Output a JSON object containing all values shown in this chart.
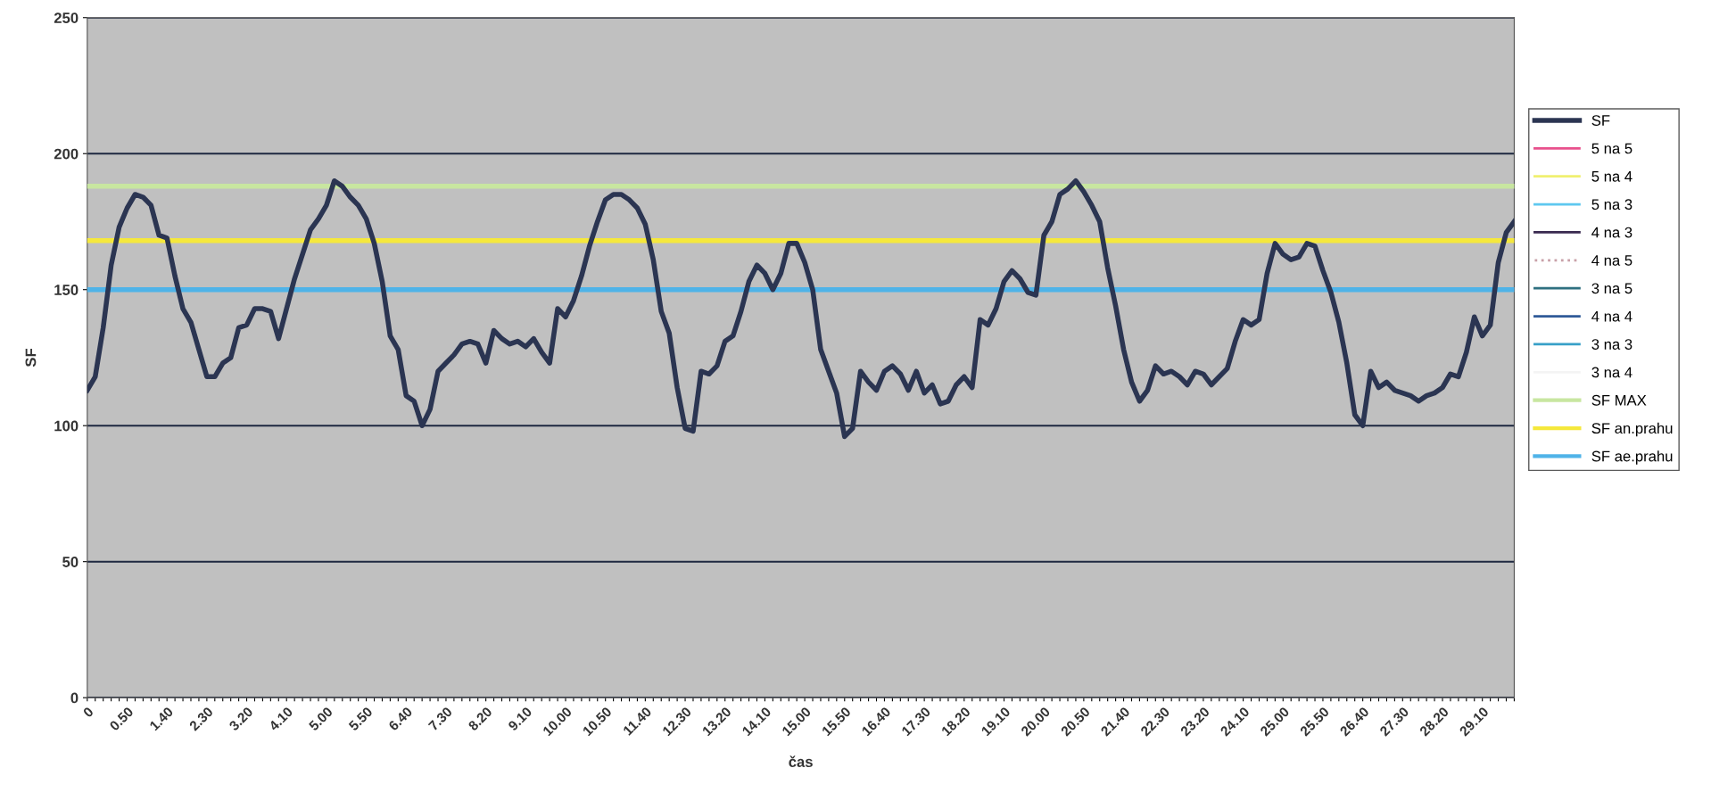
{
  "chart_data": {
    "type": "line",
    "xlabel": "čas",
    "ylabel": "SF",
    "categories": [
      "0",
      null,
      null,
      null,
      null,
      "0.50",
      null,
      null,
      null,
      null,
      "1.40",
      null,
      null,
      null,
      null,
      "2.30",
      null,
      null,
      null,
      null,
      "3.20",
      null,
      null,
      null,
      null,
      "4.10",
      null,
      null,
      null,
      null,
      "5.00",
      null,
      null,
      null,
      null,
      "5.50",
      null,
      null,
      null,
      null,
      "6.40",
      null,
      null,
      null,
      null,
      "7.30",
      null,
      null,
      null,
      null,
      "8.20",
      null,
      null,
      null,
      null,
      "9.10",
      null,
      null,
      null,
      null,
      "10.00",
      null,
      null,
      null,
      null,
      "10.50",
      null,
      null,
      null,
      null,
      "11.40",
      null,
      null,
      null,
      null,
      "12.30",
      null,
      null,
      null,
      null,
      "13.20",
      null,
      null,
      null,
      null,
      "14.10",
      null,
      null,
      null,
      null,
      "15.00",
      null,
      null,
      null,
      null,
      "15.50",
      null,
      null,
      null,
      null,
      "16.40",
      null,
      null,
      null,
      null,
      "17.30",
      null,
      null,
      null,
      null,
      "18.20",
      null,
      null,
      null,
      null,
      "19.10",
      null,
      null,
      null,
      null,
      "20.00",
      null,
      null,
      null,
      null,
      "20.50",
      null,
      null,
      null,
      null,
      "21.40",
      null,
      null,
      null,
      null,
      "22.30",
      null,
      null,
      null,
      null,
      "23.20",
      null,
      null,
      null,
      null,
      "24.10",
      null,
      null,
      null,
      null,
      "25.00",
      null,
      null,
      null,
      null,
      "25.50",
      null,
      null,
      null,
      null,
      "26.40",
      null,
      null,
      null,
      null,
      "27.30",
      null,
      null,
      null,
      null,
      "28.20",
      null,
      null,
      null,
      null,
      "29.10",
      null,
      null,
      null,
      null
    ],
    "series": [
      {
        "name": "SF",
        "color": "#2b3552",
        "values": [
          113,
          118,
          136,
          159,
          173,
          180,
          185,
          184,
          181,
          170,
          169,
          155,
          143,
          138,
          128,
          118,
          118,
          123,
          125,
          136,
          137,
          143,
          143,
          142,
          132,
          143,
          154,
          163,
          172,
          176,
          181,
          190,
          188,
          184,
          181,
          176,
          167,
          153,
          133,
          128,
          111,
          109,
          100,
          106,
          120,
          123,
          126,
          130,
          131,
          130,
          123,
          135,
          132,
          130,
          131,
          129,
          132,
          127,
          123,
          143,
          140,
          146,
          155,
          166,
          175,
          183,
          185,
          185,
          183,
          180,
          174,
          161,
          142,
          134,
          114,
          99,
          98,
          120,
          119,
          122,
          131,
          133,
          142,
          153,
          159,
          156,
          150,
          156,
          167,
          167,
          160,
          150,
          128,
          120,
          112,
          96,
          99,
          120,
          116,
          113,
          120,
          122,
          119,
          113,
          120,
          112,
          115,
          108,
          109,
          115,
          118,
          114,
          139,
          137,
          143,
          153,
          157,
          154,
          149,
          148,
          170,
          175,
          185,
          187,
          190,
          186,
          181,
          175,
          158,
          144,
          128,
          116,
          109,
          113,
          122,
          119,
          120,
          118,
          115,
          120,
          119,
          115,
          118,
          121,
          131,
          139,
          137,
          139,
          156,
          167,
          163,
          161,
          162,
          167,
          166,
          157,
          149,
          138,
          123,
          104,
          100,
          120,
          114,
          116,
          113,
          112,
          111,
          109,
          111,
          112,
          114,
          119,
          118,
          127,
          140,
          133,
          137,
          160,
          171,
          175
        ]
      },
      {
        "name": "5 na 5",
        "color": "#e8508c",
        "values": [
          null,
          null,
          null,
          null,
          null,
          null,
          null,
          null,
          null,
          null,
          null,
          null,
          null,
          null,
          null,
          null,
          null,
          null,
          null,
          null,
          null,
          null,
          null,
          null,
          null,
          null,
          null,
          null,
          null,
          null,
          null,
          null,
          null,
          null,
          null,
          null,
          null,
          null,
          null,
          null,
          null,
          null,
          null,
          null,
          null,
          null,
          null,
          null,
          null,
          null,
          null,
          null,
          null,
          null,
          null,
          null,
          null,
          null,
          null,
          null,
          null,
          null,
          null,
          null,
          null,
          null,
          null,
          null,
          null,
          null,
          null,
          null,
          null,
          null,
          null,
          null,
          null,
          null,
          null,
          null,
          null,
          null,
          null,
          null,
          null,
          null,
          null,
          null,
          null,
          null,
          null,
          null,
          null,
          null,
          null,
          null,
          null,
          null,
          null,
          null,
          null,
          null,
          null,
          null,
          null,
          null,
          null,
          null,
          null,
          null,
          null,
          null,
          null,
          null,
          null,
          null,
          null,
          null,
          null,
          null,
          null,
          null,
          null,
          null,
          null,
          null,
          null,
          null,
          null,
          null,
          null,
          null,
          null,
          null,
          null,
          null,
          null,
          null,
          null,
          null,
          null,
          null,
          null,
          null,
          null,
          null,
          null,
          null,
          null,
          null,
          null,
          null,
          null,
          null,
          null,
          null,
          null,
          null,
          null,
          null,
          null,
          null,
          null,
          null,
          null,
          null,
          null,
          null,
          null,
          null,
          null,
          null,
          null,
          null,
          null,
          null,
          null,
          null,
          null,
          null
        ]
      },
      {
        "name": "5 na 4",
        "color": "#f0f070",
        "values": [
          null,
          null,
          null,
          null,
          null,
          null,
          null,
          null,
          null,
          null,
          null,
          null,
          null,
          null,
          null,
          null,
          null,
          null,
          null,
          null,
          null,
          null,
          null,
          null,
          null,
          null,
          null,
          null,
          null,
          null,
          null,
          null,
          null,
          null,
          null,
          null,
          null,
          null,
          null,
          null,
          null,
          null,
          null,
          null,
          null,
          null,
          null,
          null,
          null,
          null,
          null,
          null,
          null,
          null,
          null,
          null,
          null,
          null,
          null,
          null,
          null,
          null,
          null,
          null,
          null,
          null,
          null,
          null,
          null,
          null,
          null,
          null,
          null,
          null,
          null,
          null,
          null,
          null,
          null,
          null,
          null,
          null,
          null,
          null,
          null,
          null,
          null,
          null,
          null,
          null,
          null,
          null,
          null,
          null,
          null,
          null,
          null,
          null,
          null,
          null,
          null,
          null,
          null,
          null,
          null,
          null,
          null,
          null,
          null,
          null,
          null,
          null,
          null,
          null,
          null,
          null,
          null,
          null,
          null,
          null,
          null,
          null,
          null,
          null,
          null,
          null,
          null,
          null,
          null,
          null,
          null,
          null,
          null,
          null,
          null,
          null,
          null,
          null,
          null,
          null,
          null,
          null,
          null,
          null,
          null,
          null,
          null,
          null,
          null,
          null,
          null,
          null,
          null,
          null,
          null,
          null,
          null,
          null,
          null,
          null,
          null,
          null,
          null,
          null,
          null,
          null,
          null,
          null,
          null,
          null,
          null,
          null,
          null,
          null,
          null,
          null,
          null,
          null,
          null,
          null
        ]
      },
      {
        "name": "5 na 3",
        "color": "#5ec8f0",
        "values": [
          null,
          null,
          null,
          null,
          null,
          null,
          null,
          null,
          null,
          null,
          null,
          null,
          null,
          null,
          null,
          null,
          null,
          null,
          null,
          null,
          null,
          null,
          null,
          null,
          null,
          null,
          null,
          null,
          null,
          null,
          null,
          null,
          null,
          null,
          null,
          null,
          null,
          null,
          null,
          null,
          null,
          null,
          null,
          null,
          null,
          null,
          null,
          null,
          null,
          null,
          null,
          null,
          null,
          null,
          null,
          null,
          null,
          null,
          null,
          null,
          null,
          null,
          null,
          null,
          null,
          null,
          null,
          null,
          null,
          null,
          null,
          null,
          null,
          null,
          null,
          null,
          null,
          null,
          null,
          null,
          null,
          null,
          null,
          null,
          null,
          null,
          null,
          null,
          null,
          null,
          null,
          null,
          null,
          null,
          null,
          null,
          null,
          null,
          null,
          null,
          null,
          null,
          null,
          null,
          null,
          null,
          null,
          null,
          null,
          null,
          null,
          null,
          null,
          null,
          null,
          null,
          null,
          null,
          null,
          null,
          null,
          null,
          null,
          null,
          null,
          null,
          null,
          null,
          null,
          null,
          null,
          null,
          null,
          null,
          null,
          null,
          null,
          null,
          null,
          null,
          null,
          null,
          null,
          null,
          null,
          null,
          null,
          null,
          null,
          null,
          null,
          null,
          null,
          null,
          null,
          null,
          null,
          null,
          null,
          null,
          null,
          null,
          null,
          null,
          null,
          null,
          null,
          null,
          null,
          null,
          null,
          null,
          null,
          null,
          null,
          null,
          null,
          null,
          null,
          null
        ]
      },
      {
        "name": "4 na 3",
        "color": "#3a2a50",
        "values": [
          null,
          null,
          null,
          null,
          null,
          null,
          null,
          null,
          null,
          null,
          null,
          null,
          null,
          null,
          null,
          null,
          null,
          null,
          null,
          null,
          null,
          null,
          null,
          null,
          null,
          null,
          null,
          null,
          null,
          null,
          null,
          null,
          null,
          null,
          null,
          null,
          null,
          null,
          null,
          null,
          null,
          null,
          null,
          null,
          null,
          null,
          null,
          null,
          null,
          null,
          null,
          null,
          null,
          null,
          null,
          null,
          null,
          null,
          null,
          null,
          null,
          null,
          null,
          null,
          null,
          null,
          null,
          null,
          null,
          null,
          null,
          null,
          null,
          null,
          null,
          null,
          null,
          null,
          null,
          null,
          null,
          null,
          null,
          null,
          null,
          null,
          null,
          null,
          null,
          null,
          null,
          null,
          null,
          null,
          null,
          null,
          null,
          null,
          null,
          null,
          null,
          null,
          null,
          null,
          null,
          null,
          null,
          null,
          null,
          null,
          null,
          null,
          null,
          null,
          null,
          null,
          null,
          null,
          null,
          null,
          null,
          null,
          null,
          null,
          null,
          null,
          null,
          null,
          null,
          null,
          null,
          null,
          null,
          null,
          null,
          null,
          null,
          null,
          null,
          null,
          null,
          null,
          null,
          null,
          null,
          null,
          null,
          null,
          null,
          null,
          null,
          null,
          null,
          null,
          null,
          null,
          null,
          null,
          null,
          null,
          null,
          null,
          null,
          null,
          null,
          null,
          null,
          null,
          null,
          null,
          null,
          null,
          null,
          null,
          null,
          null,
          null,
          null,
          null,
          null
        ]
      },
      {
        "name": "4 na 5",
        "color": "#c8a0a8",
        "line_style": "dotted",
        "values": [
          null,
          null,
          null,
          null,
          null,
          null,
          null,
          null,
          null,
          null,
          null,
          null,
          null,
          null,
          null,
          null,
          null,
          null,
          null,
          null,
          null,
          null,
          null,
          null,
          null,
          null,
          null,
          null,
          null,
          null,
          null,
          null,
          null,
          null,
          null,
          null,
          null,
          null,
          null,
          null,
          null,
          null,
          null,
          null,
          null,
          null,
          null,
          null,
          null,
          null,
          null,
          null,
          null,
          null,
          null,
          null,
          null,
          null,
          null,
          null,
          null,
          null,
          null,
          null,
          null,
          null,
          null,
          null,
          null,
          null,
          null,
          null,
          null,
          null,
          null,
          null,
          null,
          null,
          null,
          null,
          null,
          null,
          null,
          null,
          null,
          null,
          null,
          null,
          null,
          null,
          null,
          null,
          null,
          null,
          null,
          null,
          null,
          null,
          null,
          null,
          null,
          null,
          null,
          null,
          null,
          null,
          null,
          null,
          null,
          null,
          null,
          null,
          null,
          null,
          null,
          null,
          null,
          null,
          null,
          null,
          null,
          null,
          null,
          null,
          null,
          null,
          null,
          null,
          null,
          null,
          null,
          null,
          null,
          null,
          null,
          null,
          null,
          null,
          null,
          null,
          null,
          null,
          null,
          null,
          null,
          null,
          null,
          null,
          null,
          null,
          null,
          null,
          null,
          null,
          null,
          null,
          null,
          null,
          null,
          null,
          null,
          null,
          null,
          null,
          null,
          null,
          null,
          null,
          null,
          null,
          null,
          null,
          null,
          null,
          null,
          null,
          null,
          null,
          null,
          null
        ]
      },
      {
        "name": "3 na 5",
        "color": "#2f7080",
        "values": [
          null,
          null,
          null,
          null,
          null,
          null,
          null,
          null,
          null,
          null,
          null,
          null,
          null,
          null,
          null,
          null,
          null,
          null,
          null,
          null,
          null,
          null,
          null,
          null,
          null,
          null,
          null,
          null,
          null,
          null,
          null,
          null,
          null,
          null,
          null,
          null,
          null,
          null,
          null,
          null,
          null,
          null,
          null,
          null,
          null,
          null,
          null,
          null,
          null,
          null,
          null,
          null,
          null,
          null,
          null,
          null,
          null,
          null,
          null,
          null,
          null,
          null,
          null,
          null,
          null,
          null,
          null,
          null,
          null,
          null,
          null,
          null,
          null,
          null,
          null,
          null,
          null,
          null,
          null,
          null,
          null,
          null,
          null,
          null,
          null,
          null,
          null,
          null,
          null,
          null,
          null,
          null,
          null,
          null,
          null,
          null,
          null,
          null,
          null,
          null,
          null,
          null,
          null,
          null,
          null,
          null,
          null,
          null,
          null,
          null,
          null,
          null,
          null,
          null,
          null,
          null,
          null,
          null,
          null,
          null,
          null,
          null,
          null,
          null,
          null,
          null,
          null,
          null,
          null,
          null,
          null,
          null,
          null,
          null,
          null,
          null,
          null,
          null,
          null,
          null,
          null,
          null,
          null,
          null,
          null,
          null,
          null,
          null,
          null,
          null,
          null,
          null,
          null,
          null,
          null,
          null,
          null,
          null,
          null,
          null,
          null,
          null,
          null,
          null,
          null,
          null,
          null,
          null,
          null,
          null,
          null,
          null,
          null,
          null,
          null,
          null,
          null,
          null,
          null,
          null
        ]
      },
      {
        "name": "4 na 4",
        "color": "#2f5a98",
        "values": [
          null,
          null,
          null,
          null,
          null,
          null,
          null,
          null,
          null,
          null,
          null,
          null,
          null,
          null,
          null,
          null,
          null,
          null,
          null,
          null,
          null,
          null,
          null,
          null,
          null,
          null,
          null,
          null,
          null,
          null,
          null,
          null,
          null,
          null,
          null,
          null,
          null,
          null,
          null,
          null,
          null,
          null,
          null,
          null,
          null,
          null,
          null,
          null,
          null,
          null,
          null,
          null,
          null,
          null,
          null,
          null,
          null,
          null,
          null,
          null,
          null,
          null,
          null,
          null,
          null,
          null,
          null,
          null,
          null,
          null,
          null,
          null,
          null,
          null,
          null,
          null,
          null,
          null,
          null,
          null,
          null,
          null,
          null,
          null,
          null,
          null,
          null,
          null,
          null,
          null,
          null,
          null,
          null,
          null,
          null,
          null,
          null,
          null,
          null,
          null,
          null,
          null,
          null,
          null,
          null,
          null,
          null,
          null,
          null,
          null,
          null,
          null,
          null,
          null,
          null,
          null,
          null,
          null,
          null,
          null,
          null,
          null,
          null,
          null,
          null,
          null,
          null,
          null,
          null,
          null,
          null,
          null,
          null,
          null,
          null,
          null,
          null,
          null,
          null,
          null,
          null,
          null,
          null,
          null,
          null,
          null,
          null,
          null,
          null,
          null,
          null,
          null,
          null,
          null,
          null,
          null,
          null,
          null,
          null,
          null,
          null,
          null,
          null,
          null,
          null,
          null,
          null,
          null,
          null,
          null,
          null,
          null,
          null,
          null,
          null,
          null,
          null,
          null,
          null,
          null
        ]
      },
      {
        "name": "3 na 3",
        "color": "#38a0c8",
        "values": [
          null,
          null,
          null,
          null,
          null,
          null,
          null,
          null,
          null,
          null,
          null,
          null,
          null,
          null,
          null,
          null,
          null,
          null,
          null,
          null,
          null,
          null,
          null,
          null,
          null,
          null,
          null,
          null,
          null,
          null,
          null,
          null,
          null,
          null,
          null,
          null,
          null,
          null,
          null,
          null,
          null,
          null,
          null,
          null,
          null,
          null,
          null,
          null,
          null,
          null,
          null,
          null,
          null,
          null,
          null,
          null,
          null,
          null,
          null,
          null,
          null,
          null,
          null,
          null,
          null,
          null,
          null,
          null,
          null,
          null,
          null,
          null,
          null,
          null,
          null,
          null,
          null,
          null,
          null,
          null,
          null,
          null,
          null,
          null,
          null,
          null,
          null,
          null,
          null,
          null,
          null,
          null,
          null,
          null,
          null,
          null,
          null,
          null,
          null,
          null,
          null,
          null,
          null,
          null,
          null,
          null,
          null,
          null,
          null,
          null,
          null,
          null,
          null,
          null,
          null,
          null,
          null,
          null,
          null,
          null,
          null,
          null,
          null,
          null,
          null,
          null,
          null,
          null,
          null,
          null,
          null,
          null,
          null,
          null,
          null,
          null,
          null,
          null,
          null,
          null,
          null,
          null,
          null,
          null,
          null,
          null,
          null,
          null,
          null,
          null,
          null,
          null,
          null,
          null,
          null,
          null,
          null,
          null,
          null,
          null,
          null,
          null,
          null,
          null,
          null,
          null,
          null,
          null,
          null,
          null,
          null,
          null,
          null,
          null,
          null,
          null,
          null,
          null,
          null,
          null
        ]
      },
      {
        "name": "3 na 4",
        "color": "#f4f4f4",
        "values": [
          null,
          null,
          null,
          null,
          null,
          null,
          null,
          null,
          null,
          null,
          null,
          null,
          null,
          null,
          null,
          null,
          null,
          null,
          null,
          null,
          null,
          null,
          null,
          null,
          null,
          null,
          null,
          null,
          null,
          null,
          null,
          null,
          null,
          null,
          null,
          null,
          null,
          null,
          null,
          null,
          null,
          null,
          null,
          null,
          null,
          null,
          null,
          null,
          null,
          null,
          null,
          null,
          null,
          null,
          null,
          null,
          null,
          null,
          null,
          null,
          null,
          null,
          null,
          null,
          null,
          null,
          null,
          null,
          null,
          null,
          null,
          null,
          null,
          null,
          null,
          null,
          null,
          null,
          null,
          null,
          null,
          null,
          null,
          null,
          null,
          null,
          null,
          null,
          null,
          null,
          null,
          null,
          null,
          null,
          null,
          null,
          null,
          null,
          null,
          null,
          null,
          null,
          null,
          null,
          null,
          null,
          null,
          null,
          null,
          null,
          null,
          null,
          null,
          null,
          null,
          null,
          null,
          null,
          null,
          null,
          null,
          null,
          null,
          null,
          null,
          null,
          null,
          null,
          null,
          null,
          null,
          null,
          null,
          null,
          null,
          null,
          null,
          null,
          null,
          null,
          null,
          null,
          null,
          null,
          null,
          null,
          null,
          null,
          null,
          null,
          null,
          null,
          null,
          null,
          null,
          null,
          null,
          null,
          null,
          null,
          null,
          null,
          null,
          null,
          null,
          null,
          null,
          null,
          null,
          null,
          null,
          null,
          null,
          null,
          null,
          null,
          null,
          null,
          null,
          null
        ]
      }
    ],
    "ref_lines": [
      {
        "axis": "y",
        "value": 188,
        "label": "SF MAX",
        "color": "#c8e6a0"
      },
      {
        "axis": "y",
        "value": 168,
        "label": "SF an.prahu",
        "color": "#f5e83c"
      },
      {
        "axis": "y",
        "value": 150,
        "label": "SF ae.prahu",
        "color": "#4fb3e8"
      }
    ],
    "ylim": [
      0,
      250
    ],
    "yticks": [
      0,
      50,
      100,
      150,
      200,
      250
    ],
    "grid": "y",
    "legend": "right",
    "marker": "none",
    "line_style": "solid"
  }
}
